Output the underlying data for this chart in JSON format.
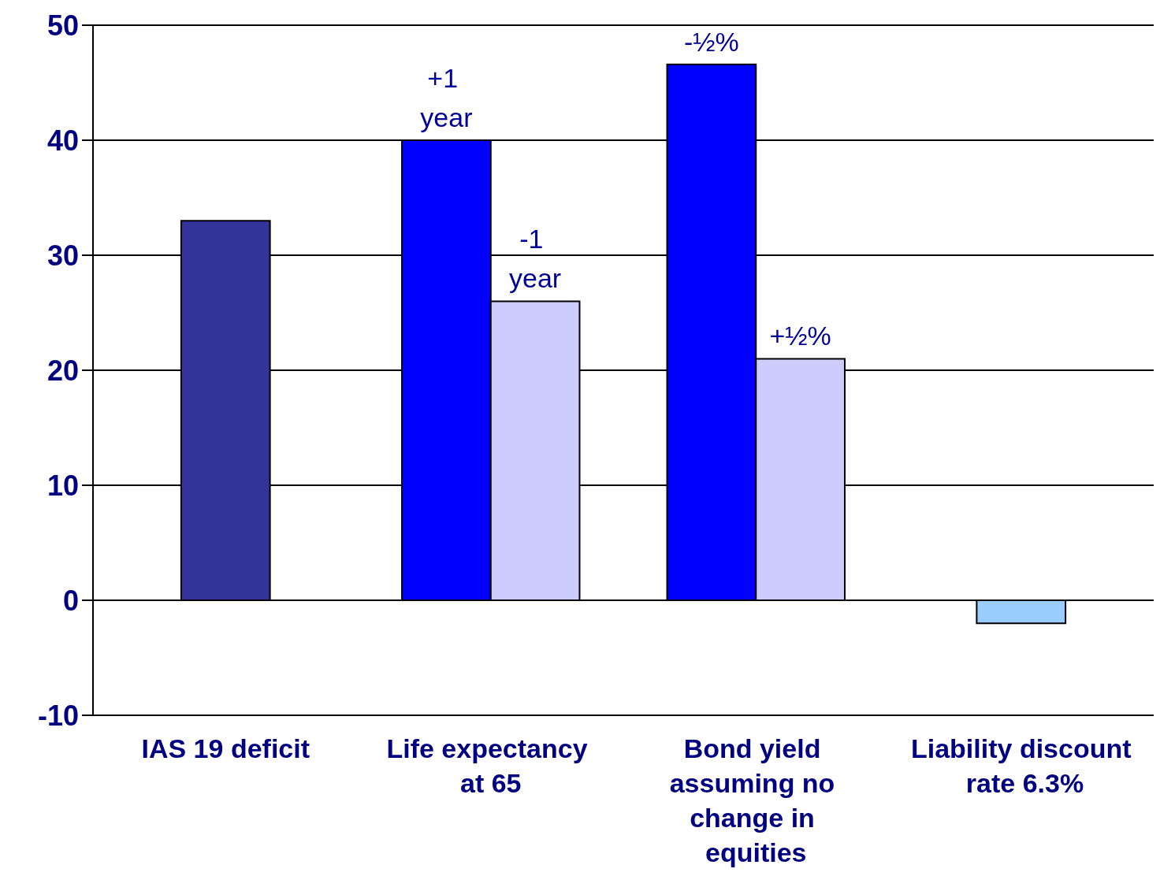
{
  "chart_data": {
    "type": "bar",
    "categories": [
      "IAS 19 deficit",
      "Life expectancy at 65",
      "Bond yield assuming no change in equities",
      "Liability discount rate 6.3%"
    ],
    "series": [
      {
        "color": "#333399",
        "values": [
          33,
          null,
          null,
          null
        ]
      },
      {
        "color": "#0000ff",
        "values": [
          null,
          40,
          46.6,
          null
        ]
      },
      {
        "color": "#ccccff",
        "values": [
          null,
          26,
          21,
          null
        ]
      },
      {
        "color": "#99ccff",
        "values": [
          null,
          null,
          null,
          -2
        ]
      }
    ],
    "annotations": [
      {
        "text": "+1 year",
        "x": "Life expectancy at 65",
        "y": 40
      },
      {
        "text": "-1 year",
        "x": "Life expectancy at 65",
        "y": 26
      },
      {
        "text": "-½%",
        "x": "Bond yield assuming no change in equities",
        "y": 46.6
      },
      {
        "text": "+½%",
        "x": "Bond yield assuming no change in equities",
        "y": 21
      }
    ],
    "ylim": [
      -10,
      50
    ],
    "yticks": [
      -10,
      0,
      10,
      20,
      30,
      40,
      50
    ],
    "grid": "y"
  }
}
